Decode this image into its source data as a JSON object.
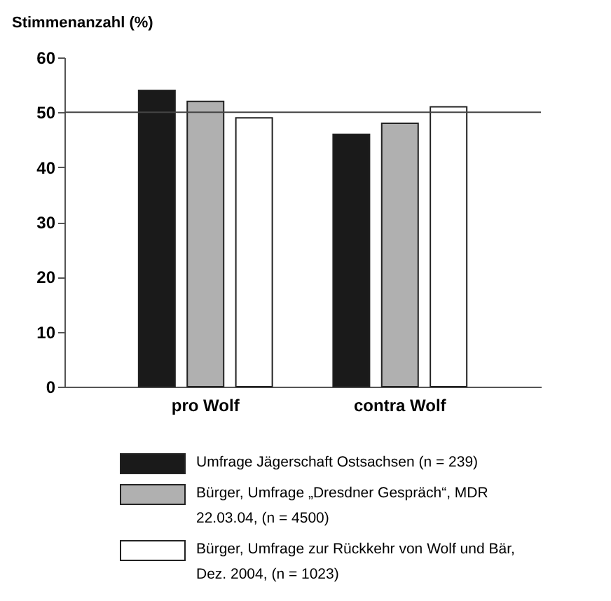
{
  "chart_data": {
    "type": "bar",
    "ylabel": "Stimmenanzahl (%)",
    "categories": [
      "pro Wolf",
      "contra Wolf"
    ],
    "series": [
      {
        "name": "Umfrage Jägerschaft Ostsachsen (n = 239)",
        "color": "#1a1a1a",
        "values": [
          54,
          46
        ]
      },
      {
        "name": "Bürger, Umfrage „Dresdner Gespräch“, MDR 22.03.04, (n = 4500)",
        "color": "#b0b0b0",
        "values": [
          52,
          48
        ]
      },
      {
        "name": "Bürger, Umfrage zur Rückkehr von Wolf und Bär, Dez. 2004, (n = 1023)",
        "color": "#ffffff",
        "values": [
          49,
          51
        ]
      }
    ],
    "ylim": [
      0,
      60
    ],
    "yticks": [
      0,
      10,
      20,
      30,
      40,
      50,
      60
    ],
    "ref_lines": [
      {
        "axis": "y",
        "value": 50
      }
    ],
    "grid": false,
    "legend": "bottom"
  }
}
